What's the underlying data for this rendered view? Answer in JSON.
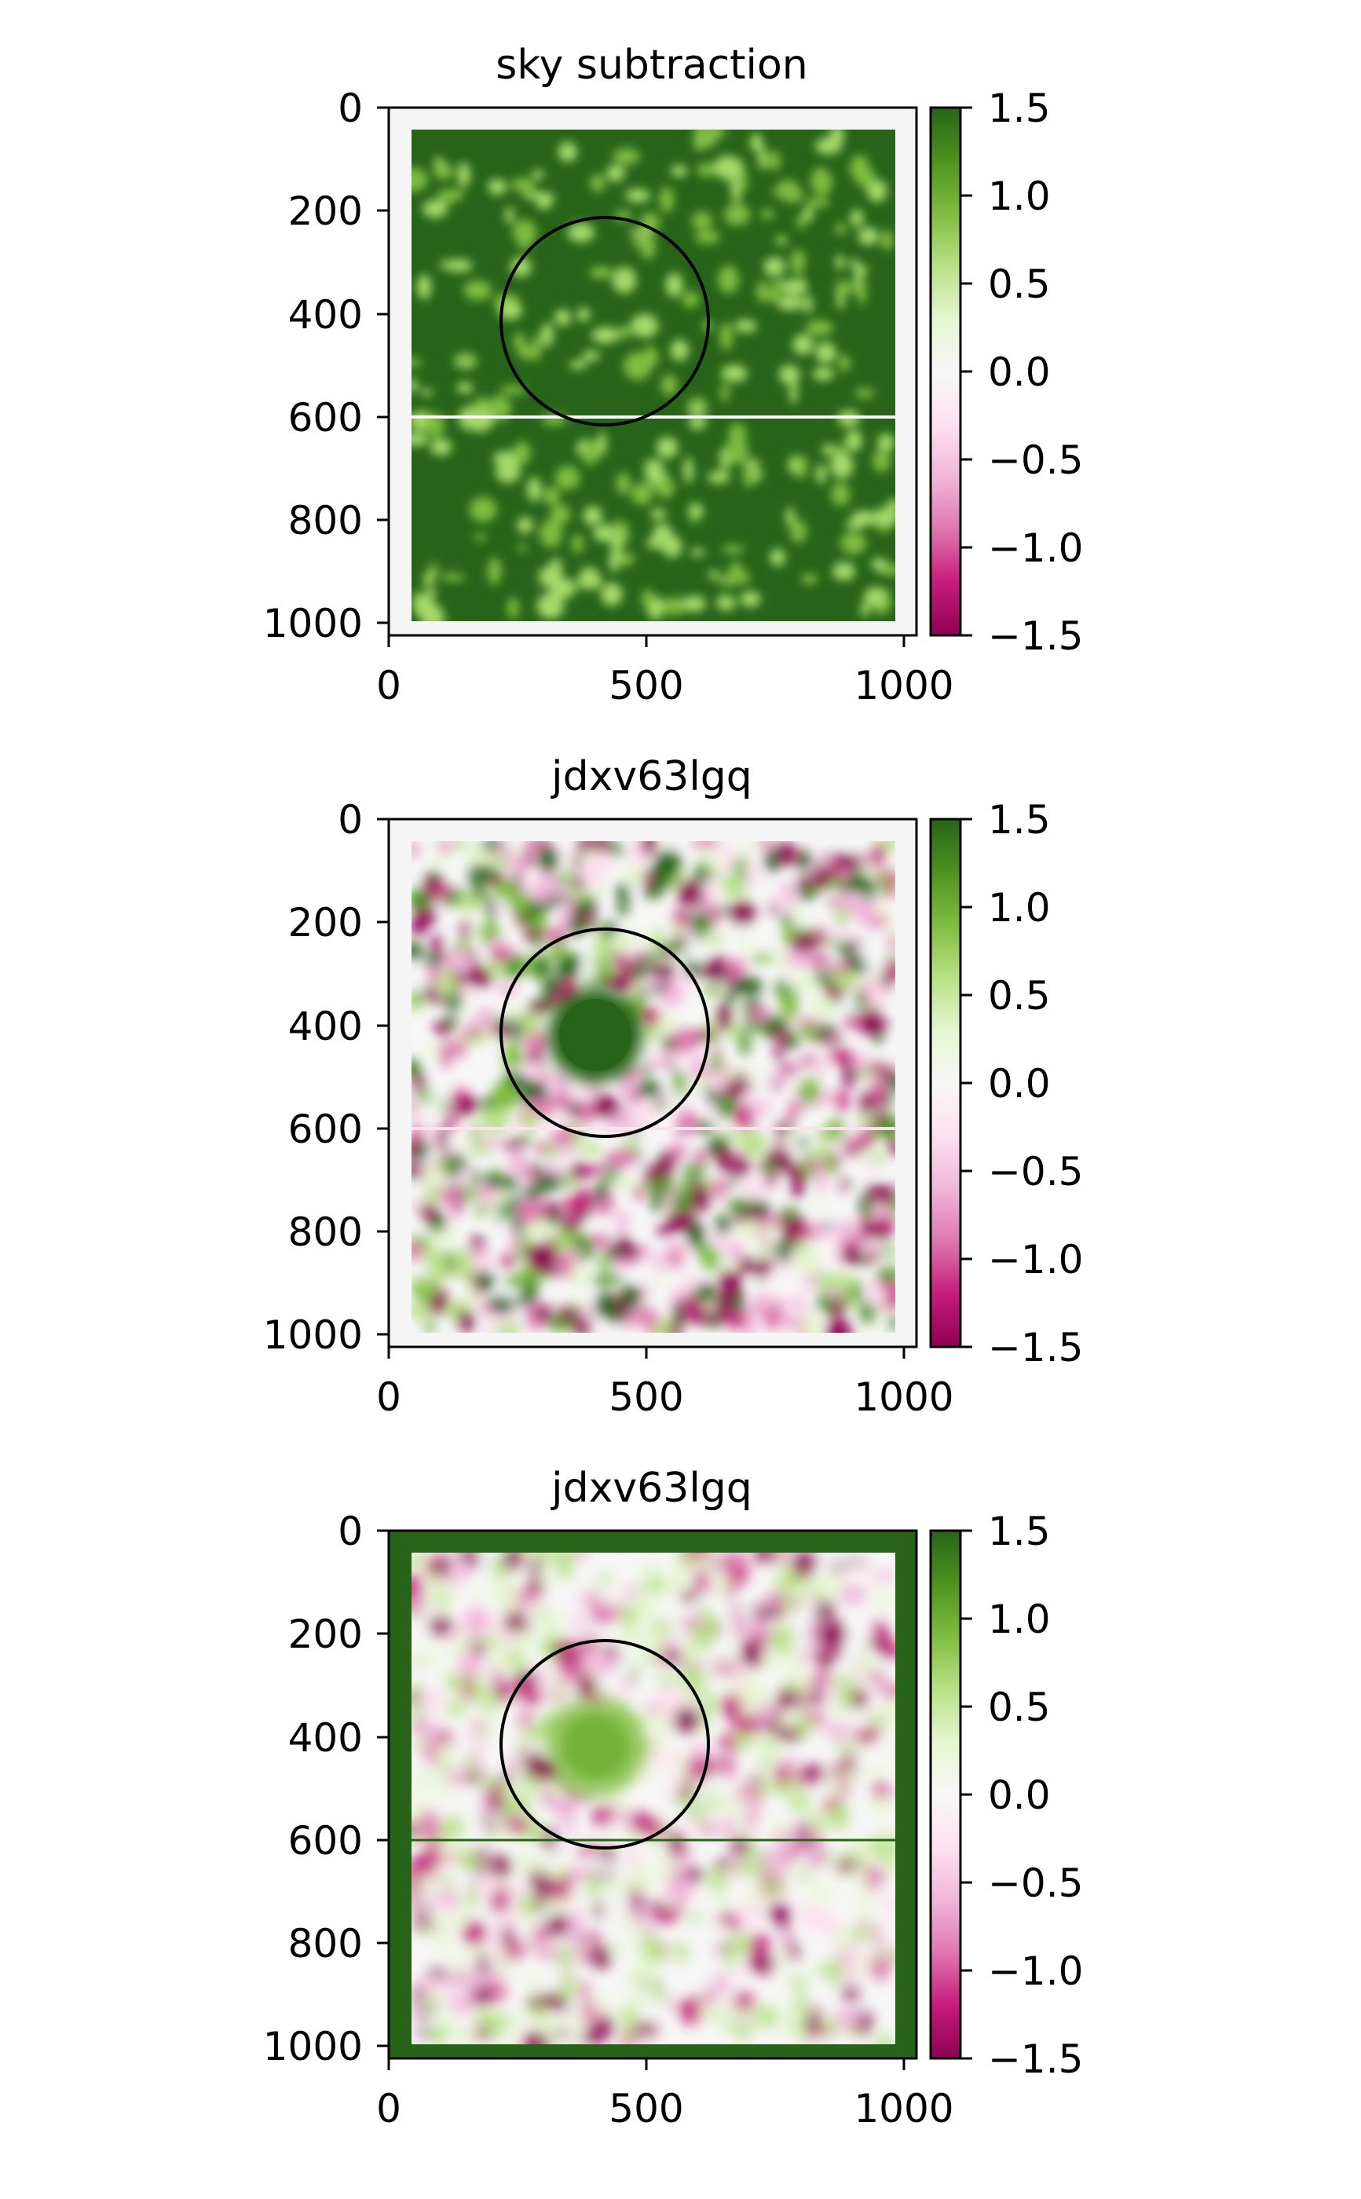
{
  "chart_data": [
    {
      "type": "heatmap",
      "title": "sky subtraction",
      "x_ticks": [
        "0",
        "500",
        "1000"
      ],
      "y_ticks": [
        "0",
        "200",
        "400",
        "600",
        "800",
        "1000"
      ],
      "colorbar_ticks": [
        "1.5",
        "1.0",
        "0.5",
        "0.0",
        "−0.5",
        "−1.0",
        "−1.5"
      ],
      "xlim": [
        0,
        1024
      ],
      "ylim": [
        1024,
        0
      ],
      "vmin": -1.5,
      "vmax": 1.5,
      "colormap": "PiYG",
      "circle": {
        "cx": 420,
        "cy": 415,
        "r": 200,
        "color": "#000000"
      },
      "hline": {
        "y": 600,
        "color": "#ffffff"
      },
      "border_color": "#f5f5f5",
      "field_color": "#276419",
      "blob_color": "#8fc55a"
    },
    {
      "type": "heatmap",
      "title": "jdxv63lgq",
      "x_ticks": [
        "0",
        "500",
        "1000"
      ],
      "y_ticks": [
        "0",
        "200",
        "400",
        "600",
        "800",
        "1000"
      ],
      "colorbar_ticks": [
        "1.5",
        "1.0",
        "0.5",
        "0.0",
        "−0.5",
        "−1.0",
        "−1.5"
      ],
      "xlim": [
        0,
        1024
      ],
      "ylim": [
        1024,
        0
      ],
      "vmin": -1.5,
      "vmax": 1.5,
      "colormap": "PiYG",
      "circle": {
        "cx": 420,
        "cy": 415,
        "r": 200,
        "color": "#000000"
      },
      "hline": {
        "y": 600,
        "color": "#fde0ef"
      },
      "border_color": "#f5f5f5",
      "source": {
        "cx": 400,
        "cy": 420,
        "r": 85,
        "value": 1.5
      }
    },
    {
      "type": "heatmap",
      "title": "jdxv63lgq",
      "x_ticks": [
        "0",
        "500",
        "1000"
      ],
      "y_ticks": [
        "0",
        "200",
        "400",
        "600",
        "800",
        "1000"
      ],
      "colorbar_ticks": [
        "1.5",
        "1.0",
        "0.5",
        "0.0",
        "−0.5",
        "−1.0",
        "−1.5"
      ],
      "xlim": [
        0,
        1024
      ],
      "ylim": [
        1024,
        0
      ],
      "vmin": -1.5,
      "vmax": 1.5,
      "colormap": "PiYG",
      "circle": {
        "cx": 420,
        "cy": 415,
        "r": 200,
        "color": "#000000"
      },
      "hline": {
        "y": 600,
        "color": "#276419"
      },
      "border_color": "#276419",
      "source": {
        "cx": 400,
        "cy": 420,
        "r": 85,
        "value": 0.75
      }
    }
  ]
}
